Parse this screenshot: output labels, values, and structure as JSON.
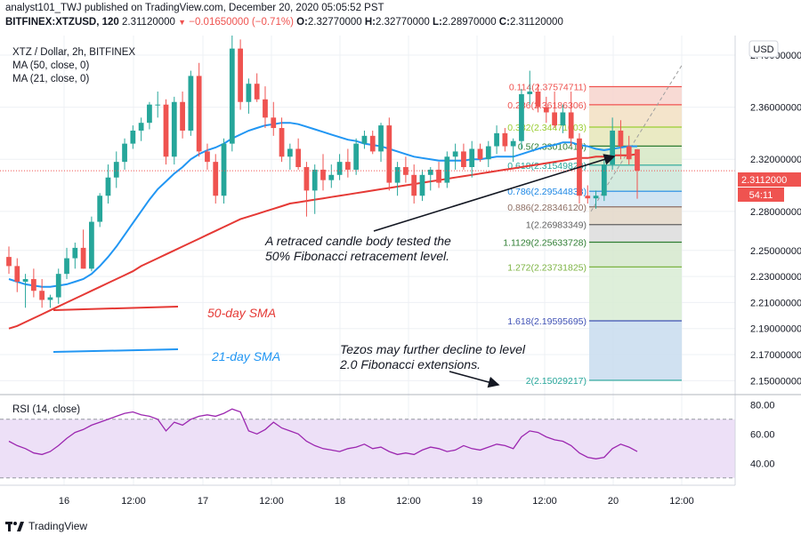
{
  "header": {
    "publisher_line": "analyst101_TWJ published on TradingView.com, December 20, 2020 05:05:52 PST",
    "symbol": "BITFINEX:XTZUSD, 120",
    "last": "2.31120000",
    "change": "−0.01650000 (−0.71%)",
    "o_label": "O:",
    "o": "2.32770000",
    "h_label": "H:",
    "h": "2.32770000",
    "l_label": "L:",
    "l": "2.28970000",
    "c_label": "C:",
    "c": "2.31120000"
  },
  "legend": {
    "title": "XTZ / Dollar, 2h, BITFINEX",
    "ma50": "MA (50, close, 0)",
    "ma21": "MA (21, close, 0)",
    "rsi": "RSI (14, close)"
  },
  "currency_button": "USD",
  "price_tag": {
    "price": "2.3112000",
    "countdown": "54:11"
  },
  "annotations": {
    "retrace_line1": "A retraced candle body tested the",
    "retrace_line2": "50% Fibonacci retracement level.",
    "decline_line1": "Tezos may further decline to level",
    "decline_line2": "2.0 Fibonacci extensions.",
    "sma50": "50-day SMA",
    "sma21": "21-day SMA"
  },
  "footer": {
    "brand": "TradingView"
  },
  "colors": {
    "up": "#26a69a",
    "down": "#ef5350",
    "ma21": "#2196f3",
    "ma50": "#e53935",
    "rsi_line": "#9c27b0",
    "rsi_band": "#ede0f7",
    "grid": "#eef0f4"
  },
  "chart_data": {
    "type": "candlestick",
    "title": "XTZ / Dollar, 2h, BITFINEX",
    "ylim": [
      2.14,
      2.415
    ],
    "y_ticks": [
      "2.40000000",
      "2.36000000",
      "2.32000000",
      "2.28000000",
      "2.25000000",
      "2.23000000",
      "2.21000000",
      "2.19000000",
      "2.17000000",
      "2.15000000"
    ],
    "x_ticks": [
      "16",
      "12:00",
      "17",
      "12:00",
      "18",
      "12:00",
      "19",
      "12:00",
      "20",
      "12:00"
    ],
    "candles": [
      [
        2.245,
        2.253,
        2.232,
        2.238
      ],
      [
        2.238,
        2.244,
        2.218,
        2.226
      ],
      [
        2.226,
        2.232,
        2.206,
        2.228
      ],
      [
        2.228,
        2.236,
        2.214,
        2.219
      ],
      [
        2.219,
        2.228,
        2.206,
        2.212
      ],
      [
        2.212,
        2.216,
        2.206,
        2.214
      ],
      [
        2.214,
        2.236,
        2.209,
        2.232
      ],
      [
        2.232,
        2.252,
        2.228,
        2.244
      ],
      [
        2.244,
        2.256,
        2.236,
        2.252
      ],
      [
        2.252,
        2.266,
        2.236,
        2.236
      ],
      [
        2.236,
        2.276,
        2.234,
        2.272
      ],
      [
        2.272,
        2.294,
        2.268,
        2.292
      ],
      [
        2.292,
        2.316,
        2.286,
        2.306
      ],
      [
        2.306,
        2.326,
        2.298,
        2.318
      ],
      [
        2.318,
        2.336,
        2.312,
        2.332
      ],
      [
        2.332,
        2.346,
        2.328,
        2.342
      ],
      [
        2.342,
        2.352,
        2.334,
        2.348
      ],
      [
        2.348,
        2.364,
        2.343,
        2.362
      ],
      [
        2.362,
        2.372,
        2.352,
        2.362
      ],
      [
        2.362,
        2.366,
        2.316,
        2.322
      ],
      [
        2.322,
        2.368,
        2.316,
        2.364
      ],
      [
        2.364,
        2.372,
        2.336,
        2.342
      ],
      [
        2.342,
        2.388,
        2.338,
        2.384
      ],
      [
        2.384,
        2.394,
        2.322,
        2.326
      ],
      [
        2.326,
        2.332,
        2.312,
        2.318
      ],
      [
        2.318,
        2.324,
        2.286,
        2.292
      ],
      [
        2.292,
        2.336,
        2.286,
        2.332
      ],
      [
        2.332,
        2.415,
        2.326,
        2.405
      ],
      [
        2.405,
        2.412,
        2.358,
        2.364
      ],
      [
        2.364,
        2.382,
        2.355,
        2.378
      ],
      [
        2.378,
        2.386,
        2.364,
        2.366
      ],
      [
        2.366,
        2.376,
        2.344,
        2.352
      ],
      [
        2.352,
        2.364,
        2.338,
        2.344
      ],
      [
        2.344,
        2.352,
        2.318,
        2.322
      ],
      [
        2.322,
        2.332,
        2.312,
        2.328
      ],
      [
        2.328,
        2.336,
        2.312,
        2.314
      ],
      [
        2.314,
        2.318,
        2.276,
        2.296
      ],
      [
        2.296,
        2.316,
        2.278,
        2.312
      ],
      [
        2.312,
        2.324,
        2.296,
        2.304
      ],
      [
        2.304,
        2.316,
        2.298,
        2.308
      ],
      [
        2.308,
        2.324,
        2.304,
        2.318
      ],
      [
        2.318,
        2.328,
        2.306,
        2.312
      ],
      [
        2.312,
        2.336,
        2.308,
        2.332
      ],
      [
        2.332,
        2.342,
        2.328,
        2.338
      ],
      [
        2.338,
        2.342,
        2.324,
        2.326
      ],
      [
        2.326,
        2.348,
        2.318,
        2.346
      ],
      [
        2.346,
        2.352,
        2.296,
        2.302
      ],
      [
        2.302,
        2.318,
        2.292,
        2.314
      ],
      [
        2.314,
        2.322,
        2.302,
        2.308
      ],
      [
        2.308,
        2.316,
        2.286,
        2.292
      ],
      [
        2.292,
        2.312,
        2.288,
        2.308
      ],
      [
        2.308,
        2.314,
        2.296,
        2.312
      ],
      [
        2.312,
        2.318,
        2.298,
        2.302
      ],
      [
        2.302,
        2.326,
        2.298,
        2.322
      ],
      [
        2.322,
        2.332,
        2.312,
        2.326
      ],
      [
        2.326,
        2.332,
        2.312,
        2.314
      ],
      [
        2.314,
        2.334,
        2.306,
        2.328
      ],
      [
        2.328,
        2.332,
        2.318,
        2.32
      ],
      [
        2.32,
        2.334,
        2.314,
        2.33
      ],
      [
        2.33,
        2.346,
        2.324,
        2.34
      ],
      [
        2.34,
        2.344,
        2.326,
        2.33
      ],
      [
        2.33,
        2.336,
        2.318,
        2.334
      ],
      [
        2.334,
        2.374,
        2.328,
        2.37
      ],
      [
        2.37,
        2.388,
        2.362,
        2.372
      ],
      [
        2.372,
        2.378,
        2.356,
        2.36
      ],
      [
        2.36,
        2.368,
        2.348,
        2.356
      ],
      [
        2.356,
        2.372,
        2.344,
        2.346
      ],
      [
        2.346,
        2.362,
        2.34,
        2.356
      ],
      [
        2.356,
        2.372,
        2.33,
        2.336
      ],
      [
        2.336,
        2.34,
        2.286,
        2.292
      ],
      [
        2.292,
        2.3,
        2.286,
        2.29
      ],
      [
        2.29,
        2.296,
        2.282,
        2.292
      ],
      [
        2.292,
        2.32,
        2.288,
        2.316
      ],
      [
        2.316,
        2.352,
        2.312,
        2.342
      ],
      [
        2.342,
        2.35,
        2.32,
        2.33
      ],
      [
        2.33,
        2.338,
        2.316,
        2.32
      ],
      [
        2.3277,
        2.3277,
        2.2897,
        2.3112
      ]
    ],
    "ma21": [
      2.228,
      2.226,
      2.224,
      2.223,
      2.222,
      2.222,
      2.223,
      2.224,
      2.226,
      2.228,
      2.232,
      2.238,
      2.245,
      2.253,
      2.262,
      2.271,
      2.28,
      2.289,
      2.297,
      2.303,
      2.309,
      2.314,
      2.32,
      2.324,
      2.327,
      2.329,
      2.332,
      2.336,
      2.339,
      2.342,
      2.344,
      2.346,
      2.347,
      2.348,
      2.348,
      2.347,
      2.345,
      2.343,
      2.341,
      2.339,
      2.337,
      2.335,
      2.334,
      2.332,
      2.331,
      2.33,
      2.328,
      2.326,
      2.324,
      2.322,
      2.321,
      2.32,
      2.319,
      2.319,
      2.319,
      2.319,
      2.32,
      2.32,
      2.321,
      2.322,
      2.322,
      2.322,
      2.324,
      2.326,
      2.328,
      2.33,
      2.331,
      2.333,
      2.333,
      2.331,
      2.33,
      2.328,
      2.327,
      2.328,
      2.329,
      2.33,
      2.33
    ],
    "ma50": [
      2.19,
      2.192,
      2.195,
      2.198,
      2.201,
      2.204,
      2.207,
      2.21,
      2.213,
      2.216,
      2.219,
      2.222,
      2.225,
      2.228,
      2.231,
      2.234,
      2.238,
      2.241,
      2.244,
      2.247,
      2.25,
      2.253,
      2.256,
      2.259,
      2.262,
      2.265,
      2.268,
      2.271,
      2.274,
      2.276,
      2.278,
      2.28,
      2.282,
      2.284,
      2.286,
      2.287,
      2.288,
      2.289,
      2.29,
      2.291,
      2.292,
      2.293,
      2.294,
      2.295,
      2.296,
      2.297,
      2.298,
      2.299,
      2.3,
      2.301,
      2.302,
      2.303,
      2.304,
      2.305,
      2.306,
      2.307,
      2.308,
      2.309,
      2.31,
      2.311,
      2.312,
      2.313,
      2.314,
      2.315,
      2.316,
      2.317,
      2.318,
      2.319,
      2.32,
      2.321,
      2.321,
      2.322,
      2.322,
      2.323,
      2.323,
      2.323,
      2.324
    ],
    "fibonacci": [
      {
        "ratio": "0.114",
        "price": "2.37574711",
        "value": 2.37574711,
        "color": "#ef5350"
      },
      {
        "ratio": "0.236",
        "price": "2.36186306",
        "value": 2.36186306,
        "color": "#ef5350"
      },
      {
        "ratio": "0.382",
        "price": "2.34471003",
        "value": 2.34471003,
        "color": "#9acd32"
      },
      {
        "ratio": "0.5",
        "price": "2.33010415",
        "value": 2.33010415,
        "color": "#2e7d32"
      },
      {
        "ratio": "0.618",
        "price": "2.31549828",
        "value": 2.31549828,
        "color": "#26a69a"
      },
      {
        "ratio": "0.786",
        "price": "2.29544838",
        "value": 2.29544838,
        "color": "#1e88e5"
      },
      {
        "ratio": "0.886",
        "price": "2.28346120",
        "value": 2.2834612,
        "color": "#8d6e63"
      },
      {
        "ratio": "1",
        "price": "2.26983349",
        "value": 2.26983349,
        "color": "#616161"
      },
      {
        "ratio": "1.1129",
        "price": "2.25633728",
        "value": 2.25633728,
        "color": "#2e7d32"
      },
      {
        "ratio": "1.272",
        "price": "2.23731825",
        "value": 2.23731825,
        "color": "#7cb342"
      },
      {
        "ratio": "1.618",
        "price": "2.19595695",
        "value": 2.19595695,
        "color": "#3f51b5"
      },
      {
        "ratio": "2",
        "price": "2.15029217",
        "value": 2.15029217,
        "color": "#26a69a"
      }
    ],
    "rsi": {
      "ylim": [
        25,
        85
      ],
      "ticks": [
        "80.00",
        "60.00",
        "40.00"
      ],
      "band": [
        30,
        70
      ],
      "values": [
        55,
        52,
        50,
        47,
        46,
        48,
        52,
        57,
        61,
        63,
        66,
        68,
        70,
        72,
        74,
        75,
        73,
        72,
        70,
        62,
        68,
        66,
        70,
        72,
        73,
        72,
        74,
        77,
        75,
        62,
        60,
        63,
        68,
        64,
        62,
        60,
        55,
        52,
        50,
        49,
        48,
        50,
        51,
        53,
        50,
        51,
        48,
        46,
        47,
        46,
        49,
        51,
        50,
        48,
        49,
        52,
        50,
        49,
        51,
        53,
        52,
        50,
        58,
        62,
        61,
        58,
        56,
        55,
        52,
        47,
        44,
        43,
        44,
        50,
        53,
        51,
        48
      ]
    }
  }
}
